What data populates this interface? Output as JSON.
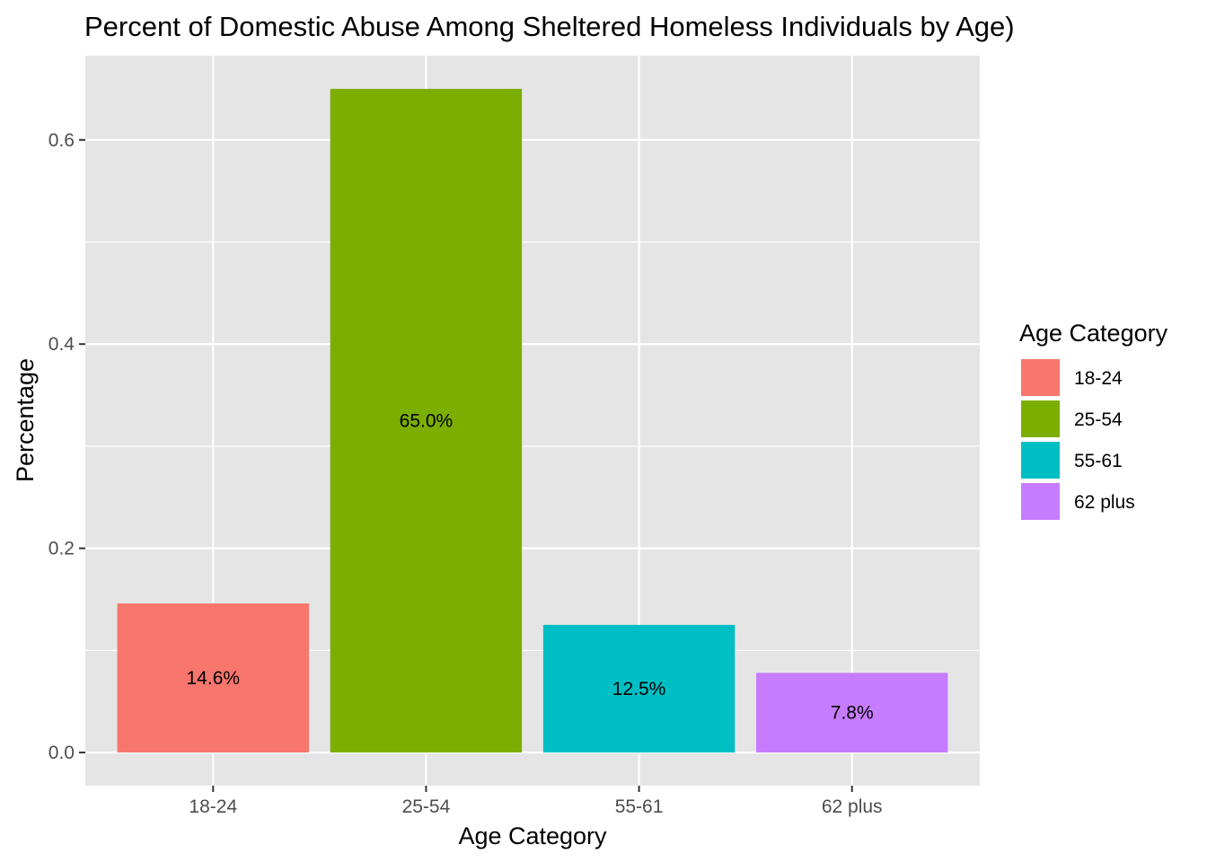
{
  "chart_data": {
    "type": "bar",
    "title": "Percent of Domestic Abuse Among Sheltered Homeless Individuals by Age)",
    "xlabel": "Age Category",
    "ylabel": "Percentage",
    "categories": [
      "18-24",
      "25-54",
      "55-61",
      "62 plus"
    ],
    "values": [
      0.146,
      0.65,
      0.125,
      0.078
    ],
    "data_labels": [
      "14.6%",
      "65.0%",
      "12.5%",
      "7.8%"
    ],
    "colors": [
      "#F8766D",
      "#7CAE00",
      "#00BFC4",
      "#C77CFF"
    ],
    "y_ticks": [
      0.0,
      0.2,
      0.4,
      0.6
    ],
    "y_tick_labels": [
      "0.0",
      "0.2",
      "0.4",
      "0.6"
    ],
    "ylim": [
      -0.0325,
      0.6825
    ],
    "grid": true,
    "panel_background": "#E5E5E5",
    "grid_color": "#FFFFFF",
    "legend": {
      "title": "Age Category",
      "position": "right",
      "items": [
        "18-24",
        "25-54",
        "55-61",
        "62 plus"
      ]
    }
  }
}
